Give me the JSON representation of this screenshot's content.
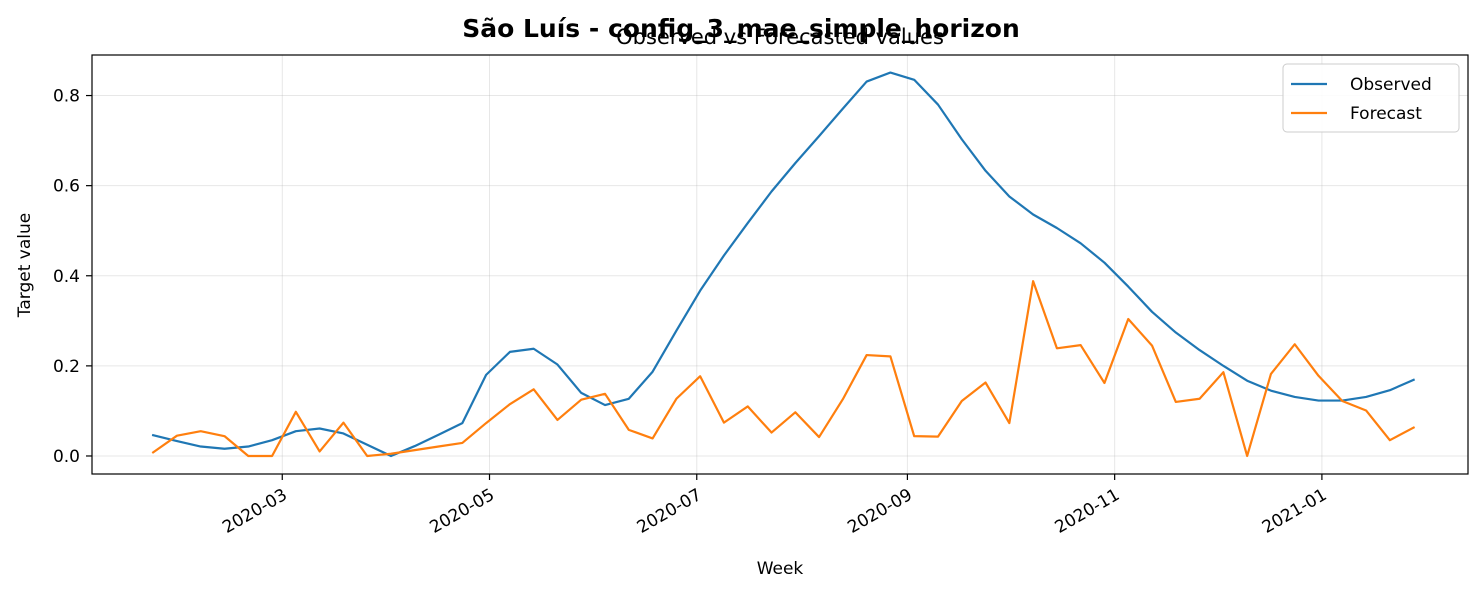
{
  "figure": {
    "suptitle": "São Luís - config_3_mae_simple_horizon",
    "title": "Observed vs Forecasted values"
  },
  "chart_data": {
    "type": "line",
    "title": "Observed vs Forecasted values",
    "suptitle": "São Luís - config_3_mae_simple_horizon",
    "xlabel": "Week",
    "ylabel": "Target value",
    "x_axis_type": "date",
    "xlim": [
      "2020-01-05",
      "2021-02-13"
    ],
    "ylim": [
      -0.04,
      0.89
    ],
    "x_ticks": [
      "2020-03-01",
      "2020-05-01",
      "2020-07-01",
      "2020-09-01",
      "2020-11-01",
      "2021-01-01"
    ],
    "x_tick_labels": [
      "2020-03",
      "2020-05",
      "2020-07",
      "2020-09",
      "2020-11",
      "2021-01"
    ],
    "y_ticks": [
      0.0,
      0.2,
      0.4,
      0.6,
      0.8
    ],
    "y_tick_labels": [
      "0.0",
      "0.2",
      "0.4",
      "0.6",
      "0.8"
    ],
    "grid": true,
    "legend_position": "upper right",
    "x": [
      "2020-01-23",
      "2020-01-30",
      "2020-02-06",
      "2020-02-13",
      "2020-02-20",
      "2020-02-27",
      "2020-03-05",
      "2020-03-12",
      "2020-03-19",
      "2020-03-26",
      "2020-04-02",
      "2020-04-09",
      "2020-04-16",
      "2020-04-23",
      "2020-04-30",
      "2020-05-07",
      "2020-05-14",
      "2020-05-21",
      "2020-05-28",
      "2020-06-04",
      "2020-06-11",
      "2020-06-18",
      "2020-06-25",
      "2020-07-02",
      "2020-07-09",
      "2020-07-16",
      "2020-07-23",
      "2020-07-30",
      "2020-08-06",
      "2020-08-13",
      "2020-08-20",
      "2020-08-27",
      "2020-09-03",
      "2020-09-10",
      "2020-09-17",
      "2020-09-24",
      "2020-10-01",
      "2020-10-08",
      "2020-10-15",
      "2020-10-22",
      "2020-10-29",
      "2020-11-05",
      "2020-11-12",
      "2020-11-19",
      "2020-11-26",
      "2020-12-03",
      "2020-12-10",
      "2020-12-17",
      "2020-12-24",
      "2020-12-31",
      "2021-01-07",
      "2021-01-14",
      "2021-01-21",
      "2021-01-28"
    ],
    "series": [
      {
        "name": "Observed",
        "color": "#1f77b4",
        "values": [
          0.046,
          0.033,
          0.021,
          0.016,
          0.021,
          0.035,
          0.055,
          0.061,
          0.05,
          0.025,
          0.0,
          0.022,
          0.047,
          0.073,
          0.18,
          0.231,
          0.238,
          0.203,
          0.14,
          0.113,
          0.127,
          0.187,
          0.278,
          0.367,
          0.445,
          0.517,
          0.587,
          0.65,
          0.71,
          0.771,
          0.831,
          0.851,
          0.835,
          0.78,
          0.703,
          0.633,
          0.576,
          0.536,
          0.506,
          0.472,
          0.429,
          0.376,
          0.32,
          0.274,
          0.235,
          0.2,
          0.167,
          0.145,
          0.131,
          0.123,
          0.123,
          0.131,
          0.146,
          0.169
        ]
      },
      {
        "name": "Forecast",
        "color": "#ff7f0e",
        "values": [
          0.008,
          0.045,
          0.055,
          0.044,
          0.0,
          0.0,
          0.098,
          0.01,
          0.074,
          0.0,
          0.005,
          0.013,
          0.021,
          0.029,
          0.073,
          0.115,
          0.148,
          0.08,
          0.125,
          0.138,
          0.058,
          0.039,
          0.127,
          0.177,
          0.074,
          0.11,
          0.052,
          0.097,
          0.042,
          0.126,
          0.224,
          0.221,
          0.044,
          0.043,
          0.122,
          0.163,
          0.073,
          0.388,
          0.239,
          0.246,
          0.162,
          0.304,
          0.245,
          0.12,
          0.127,
          0.186,
          0.0,
          0.182,
          0.248,
          0.178,
          0.122,
          0.101,
          0.035,
          0.063
        ]
      }
    ]
  }
}
